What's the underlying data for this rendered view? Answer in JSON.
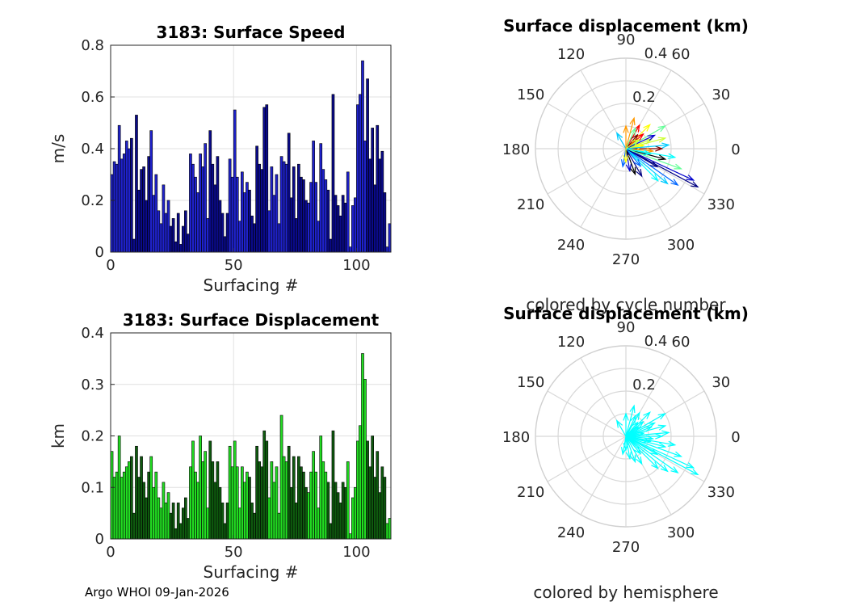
{
  "footer": "Argo WHOI 09-Jan-2026",
  "chart_data": [
    {
      "type": "bar",
      "title": "3183: Surface Speed",
      "xlabel": "Surfacing #",
      "ylabel": "m/s",
      "xlim": [
        0,
        114
      ],
      "ylim": [
        0,
        0.8
      ],
      "xticks": [
        "0",
        "50",
        "100"
      ],
      "yticks": [
        "0",
        "0.2",
        "0.4",
        "0.6",
        "0.8"
      ],
      "grid": true,
      "values": [
        0.3,
        0.35,
        0.34,
        0.49,
        0.36,
        0.38,
        0.43,
        0.4,
        0.44,
        0.05,
        0.53,
        0.24,
        0.32,
        0.33,
        0.2,
        0.37,
        0.47,
        0.22,
        0.3,
        0.16,
        0.11,
        0.26,
        0.15,
        0.2,
        0.1,
        0.13,
        0.04,
        0.15,
        0.03,
        0.1,
        0.16,
        0.07,
        0.38,
        0.34,
        0.29,
        0.23,
        0.38,
        0.33,
        0.42,
        0.13,
        0.47,
        0.34,
        0.26,
        0.37,
        0.2,
        0.15,
        0.06,
        0.15,
        0.36,
        0.29,
        0.55,
        0.29,
        0.12,
        0.31,
        0.23,
        0.27,
        0.24,
        0.14,
        0.11,
        0.41,
        0.34,
        0.32,
        0.56,
        0.57,
        0.16,
        0.33,
        0.22,
        0.3,
        0.11,
        0.37,
        0.35,
        0.34,
        0.46,
        0.21,
        0.33,
        0.13,
        0.34,
        0.29,
        0.28,
        0.2,
        0.19,
        0.27,
        0.43,
        0.27,
        0.12,
        0.42,
        0.32,
        0.28,
        0.24,
        0.05,
        0.61,
        0.22,
        0.18,
        0.14,
        0.22,
        0.19,
        0.31,
        0.02,
        0.18,
        0.21,
        0.57,
        0.61,
        0.74,
        0.43,
        0.67,
        0.36,
        0.48,
        0.26,
        0.49,
        0.36,
        0.39,
        0.23,
        0.02,
        0.11
      ],
      "colors": [
        "#1f22cc",
        "#0a0a8a"
      ]
    },
    {
      "type": "polar",
      "title": "Surface displacement (km)",
      "subtitle": "colored by cycle number",
      "rmax": 0.4,
      "r_labels": [
        "0.2",
        "0.4"
      ],
      "theta_labels": [
        "0",
        "30",
        "60",
        "90",
        "120",
        "150",
        "180",
        "210",
        "240",
        "270",
        "300",
        "330"
      ],
      "vectors_deg_km": [
        [
          -28,
          0.36
        ],
        [
          -25,
          0.33
        ],
        [
          -35,
          0.28
        ],
        [
          -40,
          0.24
        ],
        [
          -10,
          0.22
        ],
        [
          30,
          0.2
        ],
        [
          15,
          0.18
        ],
        [
          45,
          0.15
        ],
        [
          75,
          0.14
        ],
        [
          60,
          0.12
        ],
        [
          0,
          0.16
        ],
        [
          -15,
          0.18
        ],
        [
          -60,
          0.14
        ],
        [
          -80,
          0.1
        ],
        [
          -100,
          0.08
        ],
        [
          120,
          0.08
        ],
        [
          -45,
          0.2
        ],
        [
          -20,
          0.26
        ],
        [
          20,
          0.12
        ],
        [
          10,
          0.08
        ],
        [
          -5,
          0.12
        ],
        [
          40,
          0.1
        ],
        [
          50,
          0.08
        ],
        [
          -70,
          0.12
        ],
        [
          -30,
          0.16
        ],
        [
          25,
          0.14
        ],
        [
          -50,
          0.1
        ],
        [
          5,
          0.19
        ],
        [
          -12,
          0.11
        ],
        [
          65,
          0.1
        ],
        [
          35,
          0.07
        ],
        [
          -90,
          0.06
        ],
        [
          90,
          0.1
        ]
      ],
      "vector_colors": [
        "#000080",
        "#0000cc",
        "#0066ff",
        "#00ccff",
        "#00ffff",
        "#66ff99",
        "#ccff33",
        "#ffff00",
        "#ff9900",
        "#ff0000",
        "#800000",
        "#000000"
      ]
    },
    {
      "type": "bar",
      "title": "3183: Surface Displacement",
      "xlabel": "Surfacing #",
      "ylabel": "km",
      "xlim": [
        0,
        114
      ],
      "ylim": [
        0,
        0.4
      ],
      "xticks": [
        "0",
        "50",
        "100"
      ],
      "yticks": [
        "0",
        "0.1",
        "0.2",
        "0.3",
        "0.4"
      ],
      "grid": true,
      "values": [
        0.17,
        0.12,
        0.13,
        0.2,
        0.12,
        0.13,
        0.14,
        0.15,
        0.16,
        0.05,
        0.18,
        0.12,
        0.16,
        0.11,
        0.08,
        0.13,
        0.16,
        0.1,
        0.13,
        0.08,
        0.06,
        0.11,
        0.07,
        0.09,
        0.05,
        0.07,
        0.02,
        0.07,
        0.03,
        0.06,
        0.08,
        0.04,
        0.14,
        0.19,
        0.13,
        0.11,
        0.2,
        0.15,
        0.17,
        0.06,
        0.19,
        0.15,
        0.11,
        0.15,
        0.1,
        0.07,
        0.03,
        0.07,
        0.18,
        0.14,
        0.19,
        0.14,
        0.06,
        0.14,
        0.11,
        0.13,
        0.12,
        0.07,
        0.05,
        0.18,
        0.15,
        0.14,
        0.21,
        0.19,
        0.08,
        0.15,
        0.11,
        0.14,
        0.05,
        0.24,
        0.16,
        0.15,
        0.18,
        0.1,
        0.16,
        0.07,
        0.16,
        0.14,
        0.13,
        0.1,
        0.09,
        0.13,
        0.17,
        0.13,
        0.06,
        0.2,
        0.15,
        0.13,
        0.11,
        0.03,
        0.21,
        0.11,
        0.09,
        0.07,
        0.11,
        0.1,
        0.15,
        0.01,
        0.08,
        0.1,
        0.19,
        0.22,
        0.36,
        0.31,
        0.19,
        0.14,
        0.2,
        0.12,
        0.17,
        0.09,
        0.14,
        0.12,
        0.03,
        0.04
      ],
      "colors": [
        "#22dd22",
        "#0e5a0e"
      ]
    },
    {
      "type": "polar",
      "title": "Surface displacement (km)",
      "subtitle": "colored by hemisphere",
      "rmax": 0.4,
      "r_labels": [
        "0.2",
        "0.4"
      ],
      "theta_labels": [
        "0",
        "30",
        "60",
        "90",
        "120",
        "150",
        "180",
        "210",
        "240",
        "270",
        "300",
        "330"
      ],
      "vectors_deg_km": [
        [
          -28,
          0.36
        ],
        [
          -25,
          0.33
        ],
        [
          -35,
          0.28
        ],
        [
          -40,
          0.24
        ],
        [
          -10,
          0.22
        ],
        [
          30,
          0.2
        ],
        [
          15,
          0.18
        ],
        [
          45,
          0.15
        ],
        [
          75,
          0.14
        ],
        [
          60,
          0.12
        ],
        [
          0,
          0.16
        ],
        [
          -15,
          0.18
        ],
        [
          -60,
          0.14
        ],
        [
          -80,
          0.1
        ],
        [
          -100,
          0.08
        ],
        [
          120,
          0.08
        ],
        [
          -45,
          0.2
        ],
        [
          -20,
          0.26
        ],
        [
          20,
          0.12
        ],
        [
          10,
          0.08
        ],
        [
          -5,
          0.12
        ],
        [
          40,
          0.1
        ],
        [
          50,
          0.08
        ],
        [
          -70,
          0.12
        ],
        [
          -30,
          0.16
        ],
        [
          25,
          0.14
        ],
        [
          -50,
          0.1
        ],
        [
          5,
          0.19
        ],
        [
          -12,
          0.11
        ],
        [
          65,
          0.1
        ],
        [
          35,
          0.07
        ],
        [
          -90,
          0.06
        ],
        [
          90,
          0.1
        ]
      ],
      "vector_colors": [
        "#00ffff"
      ]
    }
  ]
}
